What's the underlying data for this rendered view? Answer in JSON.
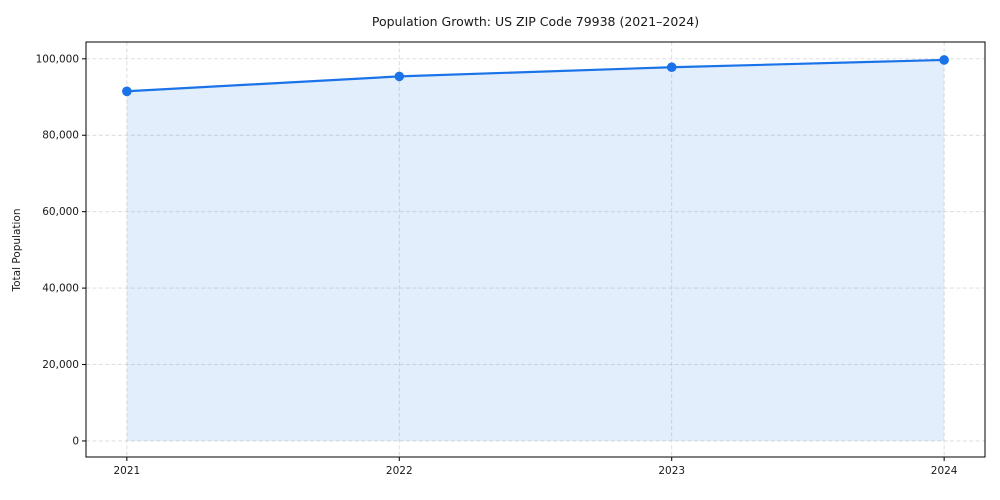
{
  "chart_data": {
    "type": "area",
    "title": "Population Growth: US ZIP Code 79938 (2021–2024)",
    "xlabel": "",
    "ylabel": "Total Population",
    "categories": [
      "2021",
      "2022",
      "2023",
      "2024"
    ],
    "series": [
      {
        "name": "Total Population",
        "values": [
          91500,
          95400,
          97800,
          99700
        ]
      }
    ],
    "ylim": [
      -4200,
      104400
    ],
    "yticks": [
      0,
      20000,
      40000,
      60000,
      80000,
      100000
    ],
    "ytick_labels": [
      "0",
      "20,000",
      "40,000",
      "60,000",
      "80,000",
      "100,000"
    ],
    "grid": true,
    "grid_style": "dashed",
    "legend": false,
    "marker": "circle",
    "colors": {
      "line": "#1a73e8",
      "fill": "rgba(26,115,232,0.12)",
      "grid": "#d9d9d9",
      "spine": "#000000",
      "text": "#1a1a1a",
      "background": "#ffffff"
    }
  }
}
